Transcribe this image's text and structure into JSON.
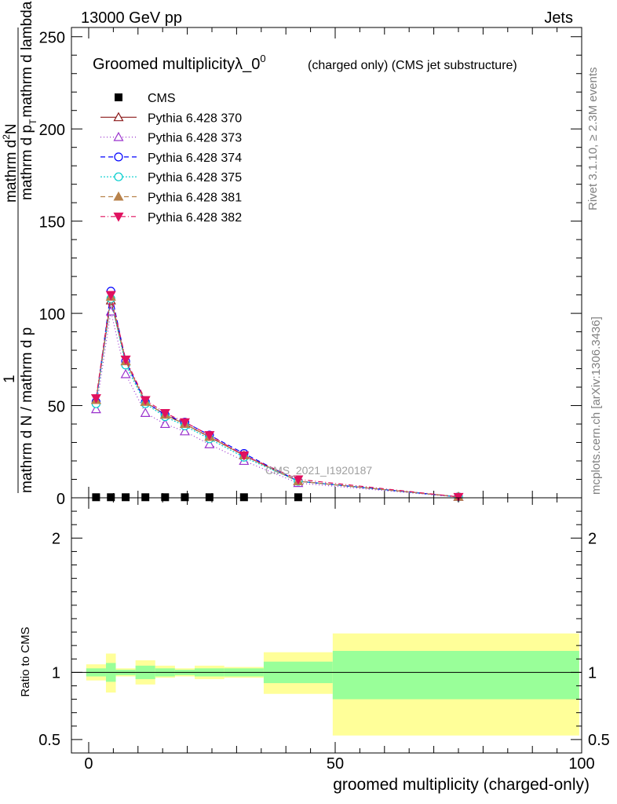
{
  "header": {
    "left": "13000 GeV pp",
    "right": "Jets"
  },
  "side_labels": {
    "rivet": "Rivet 3.1.10, ≥ 2.3M events",
    "mcplots": "mcplots.cern.ch [arXiv:1306.3436]"
  },
  "colors": {
    "data": "#000000",
    "band_inner": "#99ff99",
    "band_outer": "#ffff99"
  },
  "chart_data": [
    {
      "type": "line",
      "title_main": "Groomed multiplicityλ_0",
      "title_sup": "0",
      "title_sub": "(charged only) (CMS jet substructure)",
      "watermark": "CMS_2021_I1920187",
      "ylabel_parts": {
        "num_top": "1",
        "num_right": "mathrm d",
        "num_sup": "2",
        "num_N": "N",
        "den_left": "mathrm d N / mathrm d p",
        "den_mid": "mathrm d p",
        "den_right": "mathrm d lambda",
        "den_sub": "T"
      },
      "xlim": [
        -3.5,
        100
      ],
      "ylim": [
        0,
        255
      ],
      "yticks": [
        0,
        50,
        100,
        150,
        200,
        250
      ],
      "legend_position": "top-left",
      "data_series": {
        "name": "CMS",
        "x": [
          1.5,
          4.5,
          7.5,
          11.5,
          15.5,
          19.5,
          24.5,
          31.5,
          42.5
        ],
        "y": [
          0.3,
          0.3,
          0.3,
          0.3,
          0.3,
          0.3,
          0.3,
          0.3,
          0.3
        ]
      },
      "series": [
        {
          "name": "Pythia 6.428 370",
          "color": "#8b1a1a",
          "marker": "triangle-open",
          "dash": "",
          "x": [
            1.5,
            4.5,
            7.5,
            11.5,
            15.5,
            19.5,
            24.5,
            31.5,
            42.5,
            75
          ],
          "y": [
            53,
            107,
            74,
            52,
            45,
            40,
            33,
            23,
            9,
            0.5
          ]
        },
        {
          "name": "Pythia 6.428 373",
          "color": "#9a32cd",
          "marker": "triangle-open",
          "dash": "1,3",
          "x": [
            1.5,
            4.5,
            7.5,
            11.5,
            15.5,
            19.5,
            24.5,
            31.5,
            42.5,
            75
          ],
          "y": [
            48,
            101,
            67,
            46,
            40,
            36,
            29,
            20,
            8,
            0.4
          ]
        },
        {
          "name": "Pythia 6.428 374",
          "color": "#0000ff",
          "marker": "circle-open",
          "dash": "6,4",
          "x": [
            1.5,
            4.5,
            7.5,
            11.5,
            15.5,
            19.5,
            24.5,
            31.5,
            42.5,
            75
          ],
          "y": [
            52,
            112,
            74,
            52,
            45,
            41,
            34,
            24,
            9,
            0.5
          ]
        },
        {
          "name": "Pythia 6.428 375",
          "color": "#00cdcd",
          "marker": "circle-open",
          "dash": "2,2",
          "x": [
            1.5,
            4.5,
            7.5,
            11.5,
            15.5,
            19.5,
            24.5,
            31.5,
            42.5,
            75
          ],
          "y": [
            51,
            108,
            72,
            51,
            44,
            39,
            32,
            22,
            9,
            0.5
          ]
        },
        {
          "name": "Pythia 6.428 381",
          "color": "#b8824b",
          "marker": "triangle-filled",
          "dash": "6,4",
          "x": [
            1.5,
            4.5,
            7.5,
            11.5,
            15.5,
            19.5,
            24.5,
            31.5,
            42.5,
            75
          ],
          "y": [
            53,
            109,
            74,
            52,
            45,
            40,
            33,
            23,
            9,
            0.5
          ]
        },
        {
          "name": "Pythia 6.428 382",
          "color": "#e0115f",
          "marker": "triangle-down-filled",
          "dash": "6,3,1,3",
          "x": [
            1.5,
            4.5,
            7.5,
            11.5,
            15.5,
            19.5,
            24.5,
            31.5,
            42.5,
            75
          ],
          "y": [
            54,
            110,
            75,
            53,
            46,
            41,
            34,
            23,
            10,
            0.5
          ]
        }
      ]
    },
    {
      "type": "area",
      "ylabel": "Ratio to CMS",
      "xlabel": "groomed multiplicity (charged-only)",
      "xlim": [
        -3.5,
        100
      ],
      "ylim": [
        0.4,
        2.3
      ],
      "xticks": [
        0,
        50,
        100
      ],
      "yticks": [
        0.5,
        1,
        2
      ],
      "yticks_labels": [
        "0.5",
        "1",
        "2"
      ],
      "reference_line": 1,
      "bands": [
        {
          "x0": -0.5,
          "x1": 3.5,
          "inner": [
            0.97,
            1.03
          ],
          "outer": [
            0.94,
            1.06
          ]
        },
        {
          "x0": 3.5,
          "x1": 5.5,
          "inner": [
            0.93,
            1.07
          ],
          "outer": [
            0.85,
            1.14
          ]
        },
        {
          "x0": 5.5,
          "x1": 9.5,
          "inner": [
            0.98,
            1.02
          ],
          "outer": [
            0.97,
            1.03
          ]
        },
        {
          "x0": 9.5,
          "x1": 13.5,
          "inner": [
            0.95,
            1.05
          ],
          "outer": [
            0.91,
            1.09
          ]
        },
        {
          "x0": 13.5,
          "x1": 17.5,
          "inner": [
            0.97,
            1.03
          ],
          "outer": [
            0.96,
            1.05
          ]
        },
        {
          "x0": 17.5,
          "x1": 21.5,
          "inner": [
            0.98,
            1.02
          ],
          "outer": [
            0.97,
            1.03
          ]
        },
        {
          "x0": 21.5,
          "x1": 27.5,
          "inner": [
            0.97,
            1.03
          ],
          "outer": [
            0.95,
            1.05
          ]
        },
        {
          "x0": 27.5,
          "x1": 35.5,
          "inner": [
            0.97,
            1.03
          ],
          "outer": [
            0.96,
            1.04
          ]
        },
        {
          "x0": 35.5,
          "x1": 49.5,
          "inner": [
            0.92,
            1.08
          ],
          "outer": [
            0.84,
            1.15
          ]
        },
        {
          "x0": 49.5,
          "x1": 99.5,
          "inner": [
            0.8,
            1.16
          ],
          "outer": [
            0.53,
            1.29
          ]
        }
      ]
    }
  ]
}
